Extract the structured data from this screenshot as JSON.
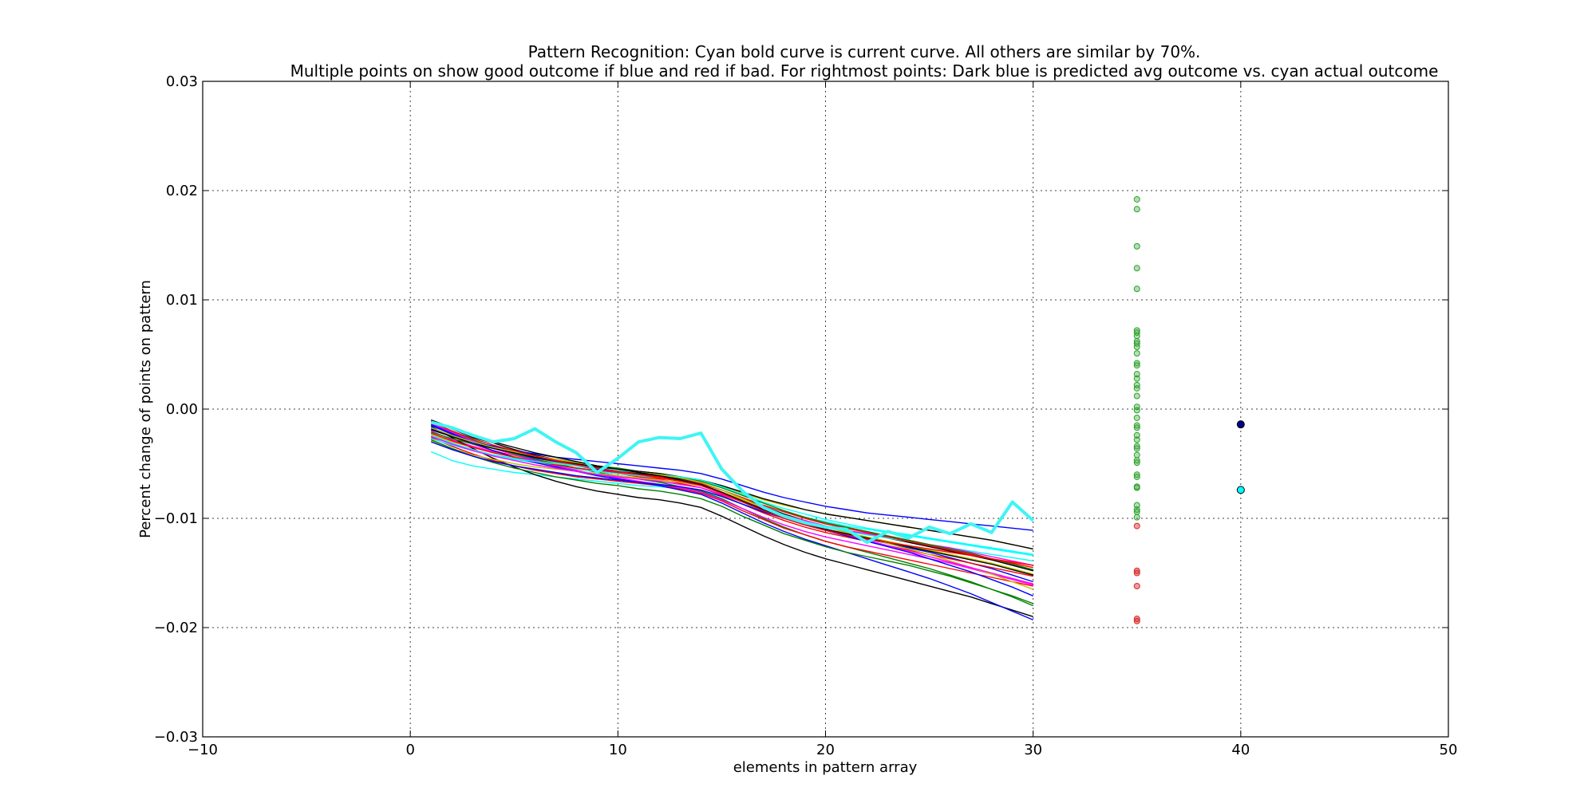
{
  "chart_data": {
    "type": "line",
    "title_line1": "Pattern Recognition: Cyan bold curve is current curve. All others are similar by 70%.",
    "title_line2": "Multiple points on show good outcome if blue and red if bad. For rightmost points: Dark blue is predicted avg outcome vs. cyan actual outcome",
    "xlabel": "elements in pattern array",
    "ylabel": "Percent change of points on pattern",
    "xlim": [
      -10,
      50
    ],
    "ylim": [
      -0.03,
      0.03
    ],
    "xticks": [
      -10,
      0,
      10,
      20,
      30,
      40,
      50
    ],
    "xtick_labels": [
      "−10",
      "0",
      "10",
      "20",
      "30",
      "40",
      "50"
    ],
    "yticks": [
      -0.03,
      -0.02,
      -0.01,
      0.0,
      0.01,
      0.02,
      0.03
    ],
    "ytick_labels": [
      "−0.03",
      "−0.02",
      "−0.01",
      "0.00",
      "0.01",
      "0.02",
      "0.03"
    ],
    "grid": true,
    "similar_curves_x": [
      1,
      2,
      3,
      4,
      5,
      6,
      7,
      8,
      9,
      10,
      11,
      12,
      13,
      14,
      15,
      16,
      17,
      18,
      19,
      20,
      21,
      22,
      23,
      24,
      25,
      26,
      27,
      28,
      29,
      30
    ],
    "similar_curves": [
      {
        "color": "#000000",
        "values": [
          -0.0011,
          -0.0018,
          -0.0026,
          -0.0031,
          -0.0037,
          -0.0042,
          -0.0046,
          -0.0049,
          -0.0053,
          -0.0056,
          -0.0059,
          -0.0061,
          -0.0064,
          -0.0068,
          -0.0074,
          -0.0082,
          -0.0089,
          -0.0096,
          -0.0102,
          -0.0107,
          -0.0111,
          -0.0115,
          -0.0118,
          -0.0122,
          -0.0126,
          -0.013,
          -0.0134,
          -0.0138,
          -0.0143,
          -0.0148
        ]
      },
      {
        "color": "#0000ff",
        "values": [
          -0.0014,
          -0.0022,
          -0.003,
          -0.0036,
          -0.004,
          -0.0045,
          -0.0048,
          -0.0052,
          -0.0055,
          -0.0057,
          -0.006,
          -0.0062,
          -0.0066,
          -0.007,
          -0.0077,
          -0.0085,
          -0.0093,
          -0.01,
          -0.0106,
          -0.0111,
          -0.0115,
          -0.0119,
          -0.0123,
          -0.0127,
          -0.0131,
          -0.0136,
          -0.0141,
          -0.0146,
          -0.0152,
          -0.0158
        ]
      },
      {
        "color": "#ff0000",
        "values": [
          -0.0017,
          -0.0025,
          -0.0032,
          -0.0038,
          -0.0043,
          -0.0047,
          -0.005,
          -0.0054,
          -0.0057,
          -0.0059,
          -0.0062,
          -0.0064,
          -0.0068,
          -0.0072,
          -0.0079,
          -0.0087,
          -0.0095,
          -0.0102,
          -0.0108,
          -0.0113,
          -0.0117,
          -0.0121,
          -0.0125,
          -0.0129,
          -0.0133,
          -0.0137,
          -0.0141,
          -0.0145,
          -0.0149,
          -0.0153
        ]
      },
      {
        "color": "#00ffff",
        "values": [
          -0.0039,
          -0.0047,
          -0.0052,
          -0.0055,
          -0.0058,
          -0.006,
          -0.0062,
          -0.0064,
          -0.0066,
          -0.0068,
          -0.007,
          -0.0071,
          -0.0073,
          -0.0075,
          -0.008,
          -0.0087,
          -0.0093,
          -0.0099,
          -0.0104,
          -0.0108,
          -0.0112,
          -0.0115,
          -0.0118,
          -0.0121,
          -0.0124,
          -0.0127,
          -0.013,
          -0.0133,
          -0.0136,
          -0.0139
        ]
      },
      {
        "color": "#ff00ff",
        "values": [
          -0.002,
          -0.0028,
          -0.0034,
          -0.0039,
          -0.0044,
          -0.0047,
          -0.0051,
          -0.0054,
          -0.0057,
          -0.0059,
          -0.0061,
          -0.0063,
          -0.0066,
          -0.007,
          -0.0077,
          -0.0084,
          -0.0091,
          -0.0097,
          -0.0102,
          -0.0107,
          -0.0111,
          -0.0114,
          -0.0117,
          -0.012,
          -0.0124,
          -0.0127,
          -0.0131,
          -0.0135,
          -0.0139,
          -0.0143
        ]
      },
      {
        "color": "#bfbf00",
        "values": [
          -0.0023,
          -0.003,
          -0.0035,
          -0.004,
          -0.0043,
          -0.0046,
          -0.0049,
          -0.0052,
          -0.0054,
          -0.0056,
          -0.0058,
          -0.006,
          -0.0062,
          -0.0065,
          -0.0071,
          -0.0077,
          -0.0083,
          -0.0088,
          -0.0092,
          -0.0096,
          -0.0099,
          -0.0102,
          -0.0105,
          -0.0108,
          -0.0111,
          -0.0114,
          -0.0117,
          -0.012,
          -0.0124,
          -0.0128
        ]
      },
      {
        "color": "#008000",
        "values": [
          -0.0012,
          -0.002,
          -0.0028,
          -0.0035,
          -0.0041,
          -0.0046,
          -0.005,
          -0.0054,
          -0.0058,
          -0.0061,
          -0.0064,
          -0.0067,
          -0.0071,
          -0.0075,
          -0.0082,
          -0.0091,
          -0.01,
          -0.0108,
          -0.0115,
          -0.0121,
          -0.0126,
          -0.0131,
          -0.0136,
          -0.0141,
          -0.0146,
          -0.0152,
          -0.0158,
          -0.0165,
          -0.0172,
          -0.018
        ]
      },
      {
        "color": "#000000",
        "values": [
          -0.0016,
          -0.0026,
          -0.0036,
          -0.0045,
          -0.0053,
          -0.006,
          -0.0066,
          -0.0071,
          -0.0075,
          -0.0078,
          -0.0081,
          -0.0083,
          -0.0086,
          -0.009,
          -0.0098,
          -0.0107,
          -0.0116,
          -0.0124,
          -0.0131,
          -0.0137,
          -0.0142,
          -0.0147,
          -0.0152,
          -0.0157,
          -0.0162,
          -0.0167,
          -0.0172,
          -0.0178,
          -0.0184,
          -0.019
        ]
      },
      {
        "color": "#0000ff",
        "values": [
          -0.0018,
          -0.0024,
          -0.003,
          -0.0034,
          -0.0038,
          -0.0041,
          -0.0044,
          -0.0046,
          -0.0048,
          -0.005,
          -0.0052,
          -0.0054,
          -0.0056,
          -0.0059,
          -0.0064,
          -0.007,
          -0.0076,
          -0.0081,
          -0.0085,
          -0.0089,
          -0.0092,
          -0.0095,
          -0.0097,
          -0.0099,
          -0.0101,
          -0.0103,
          -0.0105,
          -0.0107,
          -0.0109,
          -0.0111
        ]
      },
      {
        "color": "#ff0000",
        "values": [
          -0.0026,
          -0.0034,
          -0.0041,
          -0.0047,
          -0.0052,
          -0.0056,
          -0.0059,
          -0.0062,
          -0.0064,
          -0.0066,
          -0.0068,
          -0.007,
          -0.0073,
          -0.0077,
          -0.0084,
          -0.0093,
          -0.0101,
          -0.0109,
          -0.0115,
          -0.0121,
          -0.0126,
          -0.013,
          -0.0134,
          -0.0138,
          -0.0142,
          -0.0146,
          -0.015,
          -0.0154,
          -0.0158,
          -0.0162
        ]
      },
      {
        "color": "#00ffff",
        "values": [
          -0.0024,
          -0.0031,
          -0.0037,
          -0.0042,
          -0.0046,
          -0.0049,
          -0.0052,
          -0.0055,
          -0.0057,
          -0.0059,
          -0.0061,
          -0.0063,
          -0.0065,
          -0.0068,
          -0.0074,
          -0.0081,
          -0.0088,
          -0.0094,
          -0.0099,
          -0.0103,
          -0.0107,
          -0.011,
          -0.0113,
          -0.0116,
          -0.0119,
          -0.0122,
          -0.0125,
          -0.0128,
          -0.0131,
          -0.0134
        ]
      },
      {
        "color": "#ff00ff",
        "values": [
          -0.0013,
          -0.0021,
          -0.0029,
          -0.0036,
          -0.0042,
          -0.0047,
          -0.0052,
          -0.0056,
          -0.006,
          -0.0063,
          -0.0066,
          -0.0069,
          -0.0072,
          -0.0076,
          -0.0083,
          -0.0091,
          -0.0099,
          -0.0106,
          -0.0112,
          -0.0117,
          -0.0121,
          -0.0125,
          -0.0129,
          -0.0133,
          -0.0137,
          -0.0141,
          -0.0146,
          -0.0151,
          -0.0156,
          -0.0161
        ]
      },
      {
        "color": "#bfbf00",
        "values": [
          -0.0029,
          -0.0036,
          -0.0042,
          -0.0046,
          -0.005,
          -0.0053,
          -0.0055,
          -0.0057,
          -0.0059,
          -0.0061,
          -0.0063,
          -0.0065,
          -0.0067,
          -0.007,
          -0.0076,
          -0.0083,
          -0.009,
          -0.0097,
          -0.0103,
          -0.0108,
          -0.0113,
          -0.0118,
          -0.0123,
          -0.0128,
          -0.0133,
          -0.0139,
          -0.0145,
          -0.0151,
          -0.0158,
          -0.0165
        ]
      },
      {
        "color": "#008000",
        "values": [
          -0.0021,
          -0.0027,
          -0.0032,
          -0.0036,
          -0.004,
          -0.0043,
          -0.0046,
          -0.0049,
          -0.0052,
          -0.0054,
          -0.0057,
          -0.0059,
          -0.0062,
          -0.0066,
          -0.0072,
          -0.0079,
          -0.0086,
          -0.0093,
          -0.0099,
          -0.0104,
          -0.0108,
          -0.0112,
          -0.0116,
          -0.012,
          -0.0124,
          -0.0128,
          -0.0132,
          -0.0137,
          -0.0142,
          -0.0147
        ]
      },
      {
        "color": "#000000",
        "values": [
          -0.0019,
          -0.0025,
          -0.0031,
          -0.0036,
          -0.004,
          -0.0044,
          -0.0047,
          -0.005,
          -0.0053,
          -0.0055,
          -0.0057,
          -0.0059,
          -0.0062,
          -0.0065,
          -0.007,
          -0.0076,
          -0.0082,
          -0.0087,
          -0.0092,
          -0.0096,
          -0.0099,
          -0.0102,
          -0.0105,
          -0.0108,
          -0.0111,
          -0.0114,
          -0.0117,
          -0.012,
          -0.0124,
          -0.0128
        ]
      },
      {
        "color": "#0000ff",
        "values": [
          -0.0015,
          -0.0023,
          -0.0031,
          -0.0038,
          -0.0044,
          -0.0049,
          -0.0053,
          -0.0057,
          -0.0061,
          -0.0064,
          -0.0067,
          -0.007,
          -0.0074,
          -0.0078,
          -0.0086,
          -0.0095,
          -0.0104,
          -0.0112,
          -0.0119,
          -0.0125,
          -0.0131,
          -0.0137,
          -0.0143,
          -0.0149,
          -0.0155,
          -0.0162,
          -0.0169,
          -0.0177,
          -0.0185,
          -0.0193
        ]
      },
      {
        "color": "#ff0000",
        "values": [
          -0.0022,
          -0.0029,
          -0.0035,
          -0.004,
          -0.0044,
          -0.0048,
          -0.0051,
          -0.0054,
          -0.0056,
          -0.0058,
          -0.006,
          -0.0062,
          -0.0065,
          -0.0068,
          -0.0074,
          -0.0081,
          -0.0088,
          -0.0094,
          -0.01,
          -0.0105,
          -0.0109,
          -0.0113,
          -0.0117,
          -0.0121,
          -0.0125,
          -0.0129,
          -0.0133,
          -0.0137,
          -0.0141,
          -0.0145
        ]
      },
      {
        "color": "#00ffff",
        "values": [
          -0.0027,
          -0.0033,
          -0.0038,
          -0.0042,
          -0.0045,
          -0.0048,
          -0.005,
          -0.0052,
          -0.0054,
          -0.0056,
          -0.0058,
          -0.006,
          -0.0062,
          -0.0065,
          -0.0071,
          -0.0078,
          -0.0085,
          -0.0091,
          -0.0096,
          -0.0101,
          -0.0105,
          -0.0109,
          -0.0112,
          -0.0115,
          -0.0118,
          -0.0121,
          -0.0124,
          -0.0127,
          -0.013,
          -0.0133
        ]
      },
      {
        "color": "#ff00ff",
        "values": [
          -0.0025,
          -0.0032,
          -0.0038,
          -0.0043,
          -0.0047,
          -0.0051,
          -0.0054,
          -0.0057,
          -0.006,
          -0.0062,
          -0.0064,
          -0.0066,
          -0.0069,
          -0.0072,
          -0.0078,
          -0.0085,
          -0.0092,
          -0.0099,
          -0.0105,
          -0.011,
          -0.0115,
          -0.012,
          -0.0125,
          -0.013,
          -0.0135,
          -0.014,
          -0.0145,
          -0.015,
          -0.0155,
          -0.016
        ]
      },
      {
        "color": "#bfbf00",
        "values": [
          -0.0017,
          -0.0024,
          -0.003,
          -0.0035,
          -0.0039,
          -0.0043,
          -0.0046,
          -0.0049,
          -0.0052,
          -0.0055,
          -0.0058,
          -0.006,
          -0.0063,
          -0.0067,
          -0.0074,
          -0.0082,
          -0.009,
          -0.0097,
          -0.0103,
          -0.0108,
          -0.0113,
          -0.0117,
          -0.0121,
          -0.0125,
          -0.0129,
          -0.0133,
          -0.0137,
          -0.0141,
          -0.0146,
          -0.0151
        ]
      },
      {
        "color": "#008000",
        "values": [
          -0.0028,
          -0.0036,
          -0.0043,
          -0.0049,
          -0.0054,
          -0.0058,
          -0.0062,
          -0.0065,
          -0.0068,
          -0.007,
          -0.0073,
          -0.0075,
          -0.0078,
          -0.0082,
          -0.0089,
          -0.0098,
          -0.0106,
          -0.0114,
          -0.012,
          -0.0126,
          -0.0131,
          -0.0135,
          -0.0139,
          -0.0143,
          -0.0148,
          -0.0153,
          -0.0159,
          -0.0165,
          -0.0171,
          -0.0178
        ]
      },
      {
        "color": "#000000",
        "values": [
          -0.001,
          -0.0017,
          -0.0024,
          -0.003,
          -0.0035,
          -0.004,
          -0.0044,
          -0.0048,
          -0.0052,
          -0.0055,
          -0.0058,
          -0.0061,
          -0.0065,
          -0.0069,
          -0.0076,
          -0.0084,
          -0.0092,
          -0.0099,
          -0.0105,
          -0.011,
          -0.0114,
          -0.0118,
          -0.0122,
          -0.0126,
          -0.013,
          -0.0134,
          -0.0138,
          -0.0142,
          -0.0147,
          -0.0152
        ]
      },
      {
        "color": "#0000ff",
        "values": [
          -0.003,
          -0.0037,
          -0.0043,
          -0.0048,
          -0.0052,
          -0.0055,
          -0.0058,
          -0.0061,
          -0.0063,
          -0.0065,
          -0.0067,
          -0.0069,
          -0.0071,
          -0.0074,
          -0.008,
          -0.0087,
          -0.0094,
          -0.01,
          -0.0106,
          -0.0111,
          -0.0116,
          -0.0121,
          -0.0126,
          -0.0131,
          -0.0137,
          -0.0143,
          -0.0149,
          -0.0156,
          -0.0163,
          -0.0171
        ]
      },
      {
        "color": "#ff0000",
        "values": [
          -0.0012,
          -0.002,
          -0.0027,
          -0.0033,
          -0.0038,
          -0.0043,
          -0.0047,
          -0.0051,
          -0.0054,
          -0.0057,
          -0.006,
          -0.0063,
          -0.0066,
          -0.007,
          -0.0077,
          -0.0085,
          -0.0093,
          -0.01,
          -0.0106,
          -0.0111,
          -0.0115,
          -0.0119,
          -0.0122,
          -0.0125,
          -0.0128,
          -0.0131,
          -0.0134,
          -0.0137,
          -0.014,
          -0.0143
        ]
      }
    ],
    "current_curve": {
      "color": "#40f4f4",
      "x": [
        1,
        2,
        3,
        4,
        5,
        6,
        7,
        8,
        9,
        10,
        11,
        12,
        13,
        14,
        15,
        16,
        17,
        18,
        19,
        20,
        21,
        22,
        23,
        24,
        25,
        26,
        27,
        28,
        29,
        30
      ],
      "values": [
        -0.0012,
        -0.0017,
        -0.0024,
        -0.003,
        -0.0027,
        -0.0018,
        -0.003,
        -0.004,
        -0.0058,
        -0.0045,
        -0.003,
        -0.0026,
        -0.0027,
        -0.0022,
        -0.0055,
        -0.0075,
        -0.009,
        -0.0098,
        -0.0104,
        -0.0108,
        -0.011,
        -0.0122,
        -0.0112,
        -0.0118,
        -0.0108,
        -0.0114,
        -0.0105,
        -0.0113,
        -0.0085,
        -0.0102
      ]
    },
    "outcome_points": {
      "x": 35,
      "good_color": "#2ca02c",
      "bad_color": "#d62728",
      "good_values": [
        0.0192,
        0.0183,
        0.0149,
        0.0129,
        0.011,
        0.0072,
        0.007,
        0.0067,
        0.0062,
        0.006,
        0.0057,
        0.0051,
        0.0042,
        0.004,
        0.0032,
        0.0028,
        0.0022,
        0.0019,
        0.0012,
        0.0002,
        -0.0001,
        -0.0008,
        -0.0015,
        -0.0017,
        -0.0024,
        -0.0028,
        -0.0034,
        -0.0036,
        -0.0042,
        -0.0047,
        -0.0049,
        -0.006,
        -0.0062,
        -0.0071,
        -0.0072,
        -0.0088,
        -0.0092,
        -0.0094,
        -0.0099
      ],
      "bad_values": [
        -0.0107,
        -0.0148,
        -0.015,
        -0.0162,
        -0.0192,
        -0.0194
      ]
    },
    "predicted_point": {
      "x": 40,
      "value": -0.0014,
      "color": "#00008b"
    },
    "actual_point": {
      "x": 40,
      "value": -0.0074,
      "color": "#00ffff"
    }
  }
}
